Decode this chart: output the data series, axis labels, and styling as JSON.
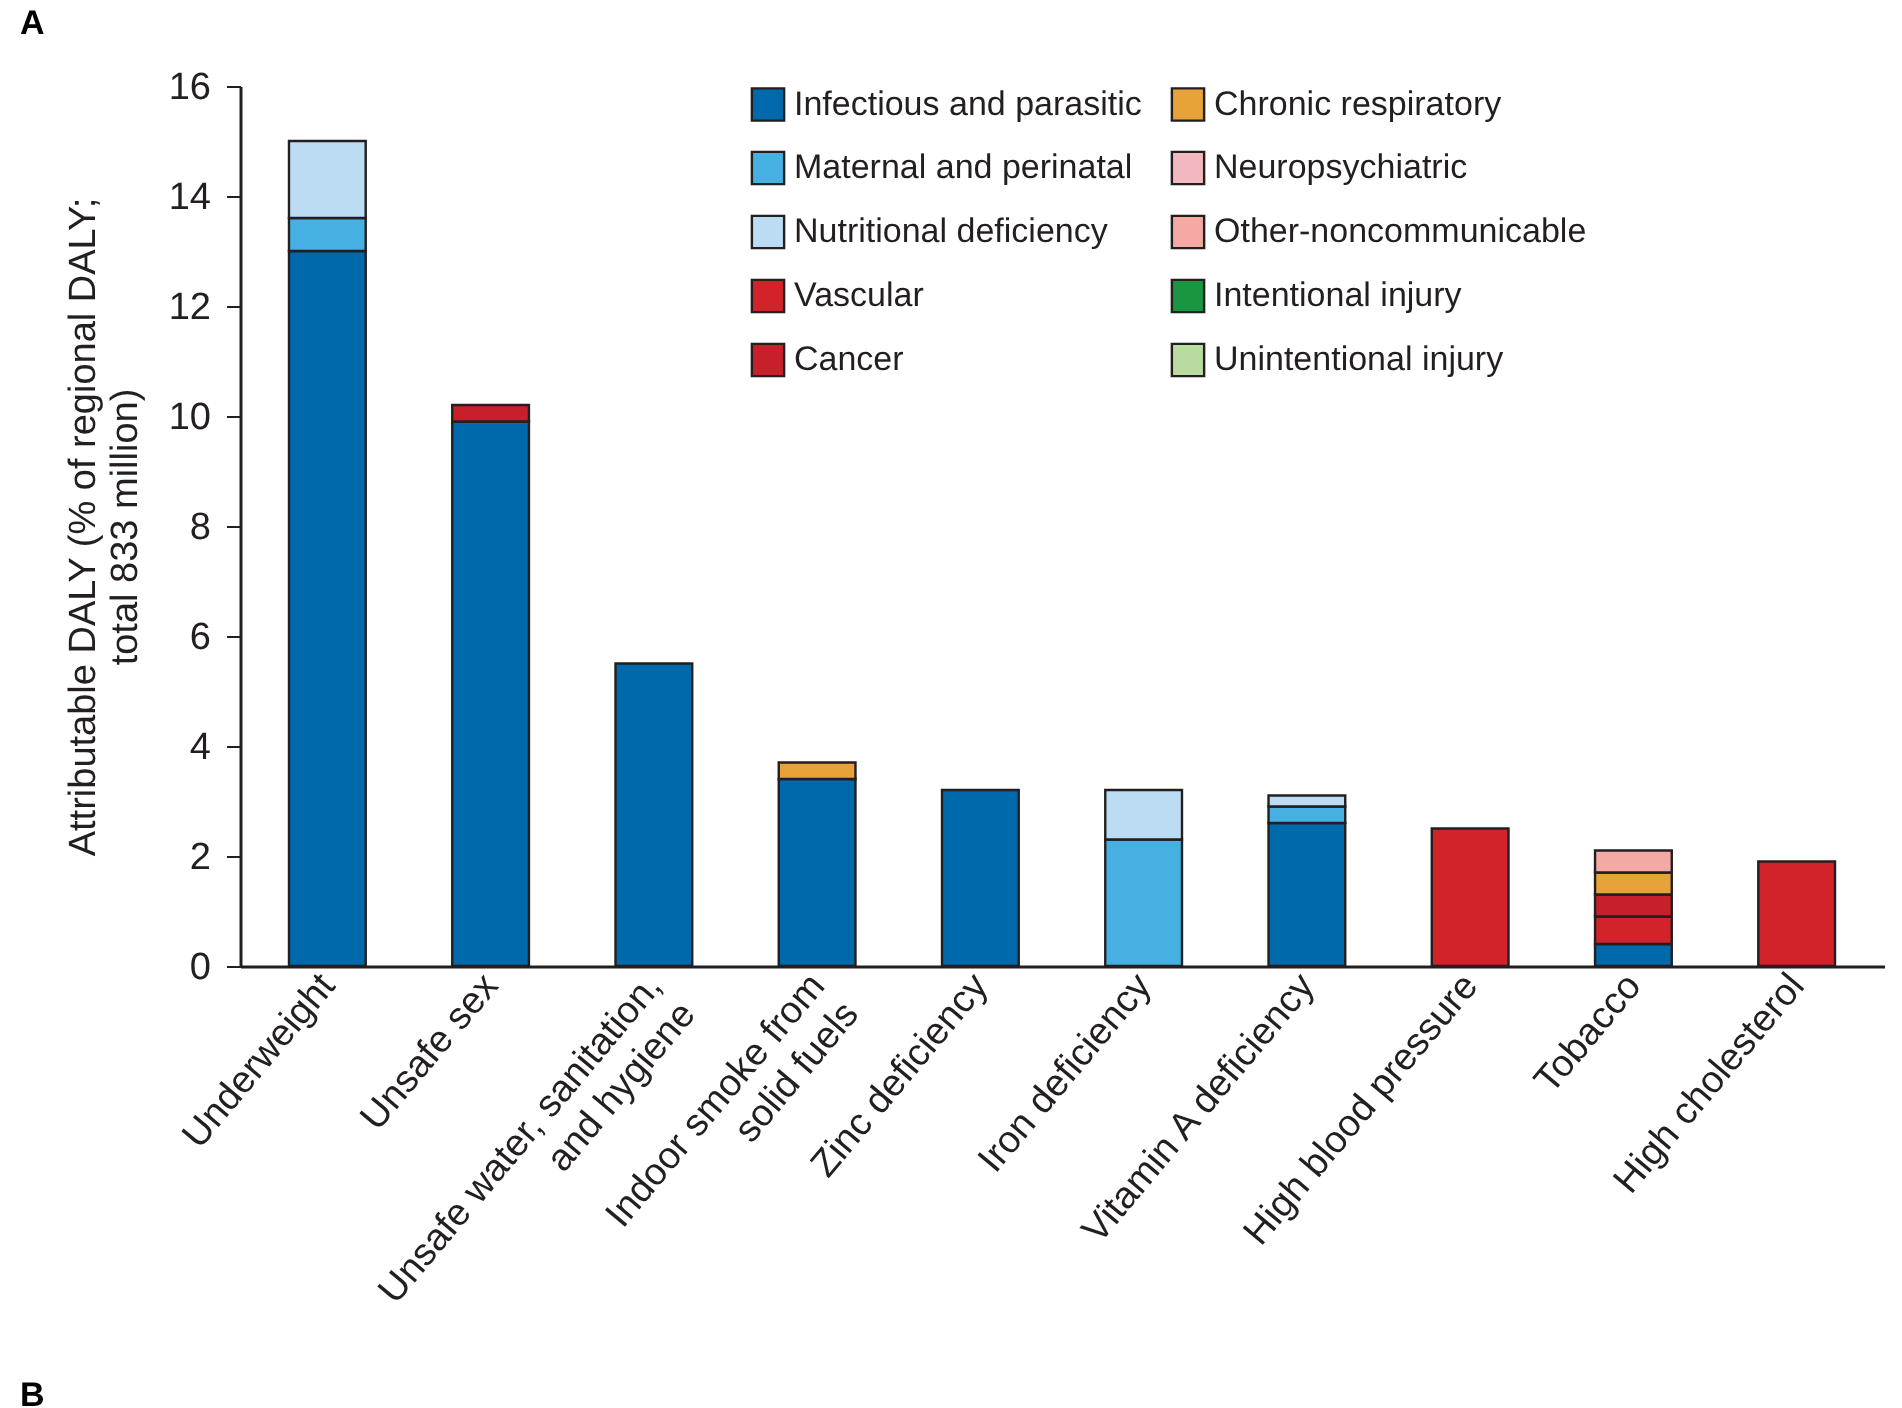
{
  "chart_data": {
    "type": "bar",
    "stacked": true,
    "title": "A",
    "ylabel": "Attributable DALY (% of regional DALY;\ntotal 833 million)",
    "categories": [
      "Underweight",
      "Unsafe sex",
      "Unsafe water, sanitation,\nand hygiene",
      "Indoor smoke from\nsolid fuels",
      "Zinc deficiency",
      "Iron deficiency",
      "Vitamin A deficiency",
      "High blood pressure",
      "Tobacco",
      "High cholesterol"
    ],
    "series": [
      {
        "name": "Infectious and parasitic",
        "color": "#0069ab",
        "values": [
          13.0,
          9.9,
          5.5,
          3.4,
          3.2,
          null,
          2.6,
          null,
          0.4,
          null
        ]
      },
      {
        "name": "Maternal and perinatal",
        "color": "#45b0e1",
        "values": [
          0.6,
          null,
          null,
          null,
          null,
          2.3,
          0.3,
          null,
          null,
          null
        ]
      },
      {
        "name": "Nutritional deficiency",
        "color": "#bcdcf3",
        "values": [
          1.4,
          null,
          null,
          null,
          null,
          0.9,
          0.2,
          null,
          null,
          null
        ]
      },
      {
        "name": "Vascular",
        "color": "#d2232a",
        "values": [
          null,
          null,
          null,
          null,
          null,
          null,
          null,
          2.5,
          0.5,
          1.9
        ]
      },
      {
        "name": "Cancer",
        "color": "#c8202a",
        "values": [
          null,
          0.3,
          null,
          null,
          null,
          null,
          null,
          null,
          0.4,
          null
        ]
      },
      {
        "name": "Chronic respiratory",
        "color": "#e8a23a",
        "values": [
          null,
          null,
          null,
          0.3,
          null,
          null,
          null,
          null,
          0.4,
          null
        ]
      },
      {
        "name": "Neuropsychiatric",
        "color": "#f2b8c0",
        "values": [
          null,
          null,
          null,
          null,
          null,
          null,
          null,
          null,
          null,
          null
        ]
      },
      {
        "name": "Other-noncommunicable",
        "color": "#f5a9a5",
        "values": [
          null,
          null,
          null,
          null,
          null,
          null,
          null,
          null,
          0.4,
          null
        ]
      },
      {
        "name": "Intentional  injury",
        "color": "#1a9641",
        "values": [
          null,
          null,
          null,
          null,
          null,
          null,
          null,
          null,
          null,
          null
        ]
      },
      {
        "name": "Unintentional injury",
        "color": "#b8dca0",
        "values": [
          null,
          null,
          null,
          null,
          null,
          null,
          null,
          null,
          null,
          null
        ]
      }
    ],
    "ylim": [
      0,
      16
    ],
    "yticks": [
      0,
      2,
      4,
      6,
      8,
      10,
      12,
      14,
      16
    ],
    "grid": false,
    "legend": "top right",
    "annotations": [
      "B"
    ]
  }
}
